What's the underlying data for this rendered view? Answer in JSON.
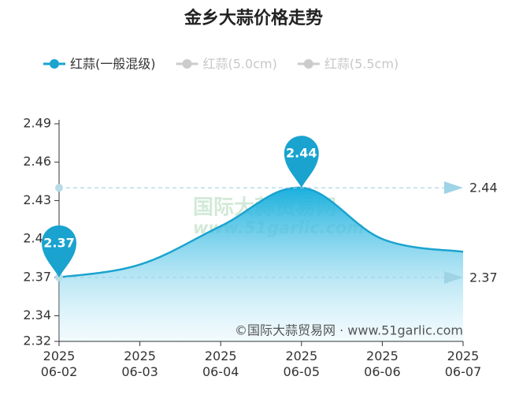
{
  "chart_data": {
    "type": "line",
    "title": "金乡大蒜价格走势",
    "categories": [
      "2025\n06-02",
      "2025\n06-03",
      "2025\n06-04",
      "2025\n06-05",
      "2025\n06-06",
      "2025\n06-07"
    ],
    "series": [
      {
        "name": "红蒜(一般混级)",
        "color": "#1aa3cf",
        "visible": true,
        "values": [
          2.37,
          2.38,
          2.41,
          2.44,
          2.4,
          2.39
        ]
      },
      {
        "name": "红蒜(5.0cm)",
        "color": "#cccccc",
        "visible": false,
        "values": [
          null,
          null,
          null,
          null,
          null,
          null
        ]
      },
      {
        "name": "红蒜(5.5cm)",
        "color": "#cccccc",
        "visible": false,
        "values": [
          null,
          null,
          null,
          null,
          null,
          null
        ]
      }
    ],
    "ylim": [
      2.32,
      2.49
    ],
    "yticks": [
      2.32,
      2.34,
      2.37,
      {
        "value": 2.4,
        "label": "2.40"
      },
      2.43,
      2.46,
      2.49
    ],
    "mark_points": [
      2.44,
      2.37
    ],
    "mark_lines": [
      2.44,
      2.37
    ],
    "watermark": [
      "国际大蒜贸易网",
      "www.51garlic.com"
    ],
    "source": "©国际大蒜贸易网 · www.51garlic.com"
  }
}
